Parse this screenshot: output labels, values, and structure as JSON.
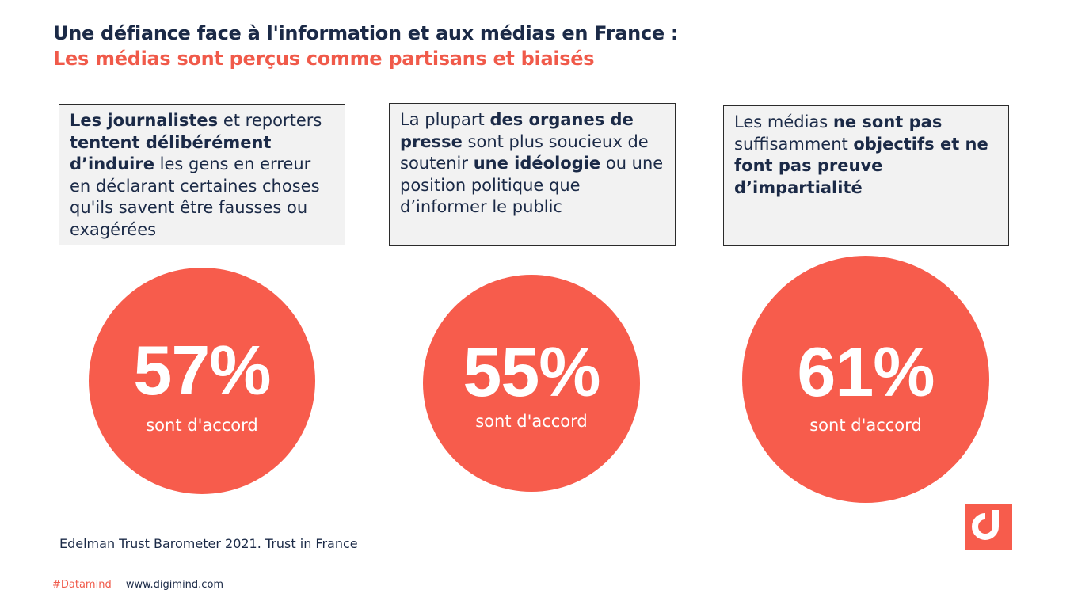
{
  "header": {
    "title_line1": "Une défiance face à l'information et aux médias en France :",
    "title_line2": "Les médias sont perçus comme partisans et biaisés"
  },
  "cards": [
    {
      "segments": [
        {
          "text": "Les journalistes",
          "bold": true
        },
        {
          "text": " et reporters ",
          "bold": false
        },
        {
          "text": "tentent délibérément d’induire",
          "bold": true
        },
        {
          "text": " les gens en erreur en déclarant certaines choses qu'ils savent être fausses ou exagérées",
          "bold": false
        }
      ]
    },
    {
      "segments": [
        {
          "text": "La plupart ",
          "bold": false
        },
        {
          "text": "des organes de presse",
          "bold": true
        },
        {
          "text": " sont plus soucieux de soutenir ",
          "bold": false
        },
        {
          "text": "une idéologie",
          "bold": true
        },
        {
          "text": " ou une position politique que d’informer le public",
          "bold": false
        }
      ]
    },
    {
      "segments": [
        {
          "text": "Les médias ",
          "bold": false
        },
        {
          "text": "ne sont pas",
          "bold": true
        },
        {
          "text": " suffisamment ",
          "bold": false
        },
        {
          "text": "objectifs et ne font pas preuve d’impartialité",
          "bold": true
        }
      ]
    }
  ],
  "stats": [
    {
      "value": "57%",
      "label": "sont d'accord"
    },
    {
      "value": "55%",
      "label": "sont d'accord"
    },
    {
      "value": "61%",
      "label": "sont d'accord"
    }
  ],
  "source": "Edelman Trust Barometer 2021. Trust in France",
  "footer": {
    "hashtag": "#Datamind",
    "url": "www.digimind.com"
  },
  "brand": {
    "logo_icon": "digimind-logo-icon",
    "accent_color": "#f75c4c",
    "title_color": "#1b2a47"
  }
}
